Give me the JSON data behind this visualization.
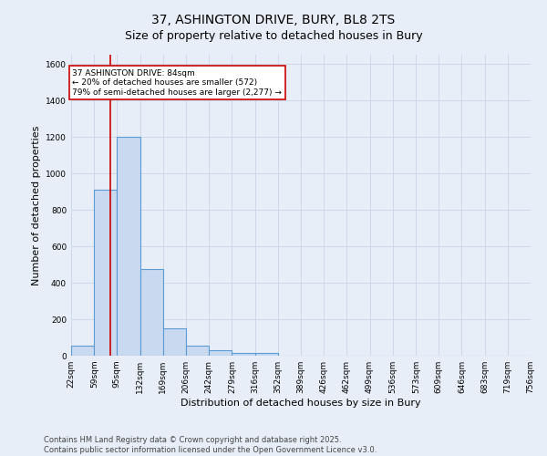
{
  "title_line1": "37, ASHINGTON DRIVE, BURY, BL8 2TS",
  "title_line2": "Size of property relative to detached houses in Bury",
  "xlabel": "Distribution of detached houses by size in Bury",
  "ylabel": "Number of detached properties",
  "bin_edges": [
    22,
    59,
    95,
    132,
    169,
    206,
    242,
    279,
    316,
    352,
    389,
    426,
    462,
    499,
    536,
    573,
    609,
    646,
    683,
    719,
    756
  ],
  "bar_heights": [
    55,
    910,
    1200,
    475,
    150,
    55,
    28,
    15,
    15,
    0,
    0,
    0,
    0,
    0,
    0,
    0,
    0,
    0,
    0,
    0
  ],
  "bar_color": "#c8d9f0",
  "bar_edge_color": "#5b9bd5",
  "bar_edge_width": 0.8,
  "property_size": 84,
  "vline_color": "#cc0000",
  "annotation_text": "37 ASHINGTON DRIVE: 84sqm\n← 20% of detached houses are smaller (572)\n79% of semi-detached houses are larger (2,277) →",
  "annotation_box_color": "#ffffff",
  "annotation_box_edge_color": "#cc0000",
  "annotation_fontsize": 6.5,
  "ylim": [
    0,
    1650
  ],
  "yticks": [
    0,
    200,
    400,
    600,
    800,
    1000,
    1200,
    1400,
    1600
  ],
  "background_color": "#e8eef7",
  "grid_color": "#c8d4e8",
  "footer_line1": "Contains HM Land Registry data © Crown copyright and database right 2025.",
  "footer_line2": "Contains public sector information licensed under the Open Government Licence v3.0.",
  "title_fontsize": 10,
  "subtitle_fontsize": 9,
  "axis_label_fontsize": 8,
  "tick_fontsize": 6.5,
  "footer_fontsize": 6.0
}
